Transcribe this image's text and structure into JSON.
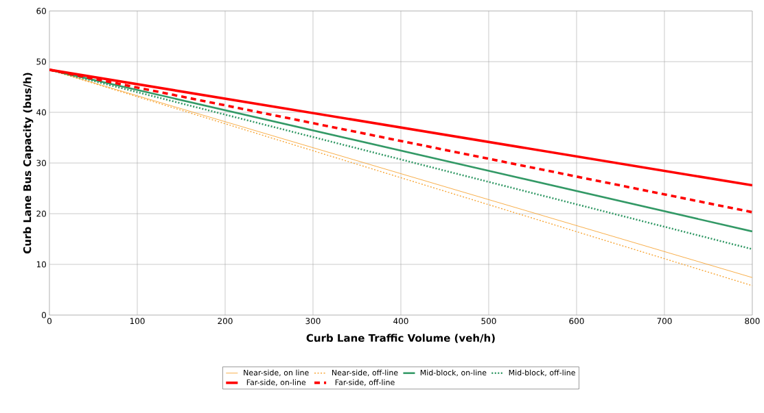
{
  "chart_data": {
    "type": "line",
    "xlabel": "Curb Lane Traffic Volume (veh/h)",
    "ylabel": "Curb Lane Bus Capacity (bus/h)",
    "x": [
      0,
      800
    ],
    "series": [
      {
        "name": "Near-side, on line",
        "color": "#f7a535",
        "values": [
          48.4,
          7.4
        ],
        "line_style": "solid"
      },
      {
        "name": "Near-side, off-line",
        "color": "#f7a535",
        "values": [
          48.4,
          5.8
        ],
        "line_style": "dotted"
      },
      {
        "name": "Mid-block, on-line",
        "color": "#339966",
        "values": [
          48.4,
          16.5
        ],
        "line_style": "solid"
      },
      {
        "name": "Mid-block, off-line",
        "color": "#339966",
        "values": [
          48.4,
          13
        ],
        "line_style": "dotted"
      },
      {
        "name": "Far-side, on-line",
        "color": "#ff0000",
        "values": [
          48.4,
          25.6
        ],
        "line_style": "solid"
      },
      {
        "name": "Far-side, off-line",
        "color": "#ff0000",
        "values": [
          48.4,
          20.3
        ],
        "line_style": "dashed"
      }
    ],
    "xlim": [
      0,
      800
    ],
    "xticks": [
      0,
      100,
      200,
      300,
      400,
      500,
      600,
      700,
      800
    ],
    "ylim": [
      0,
      60
    ],
    "yticks": [
      0,
      10,
      20,
      30,
      40,
      50,
      60
    ],
    "grid": true,
    "legend": "bottom",
    "marker": "none"
  }
}
